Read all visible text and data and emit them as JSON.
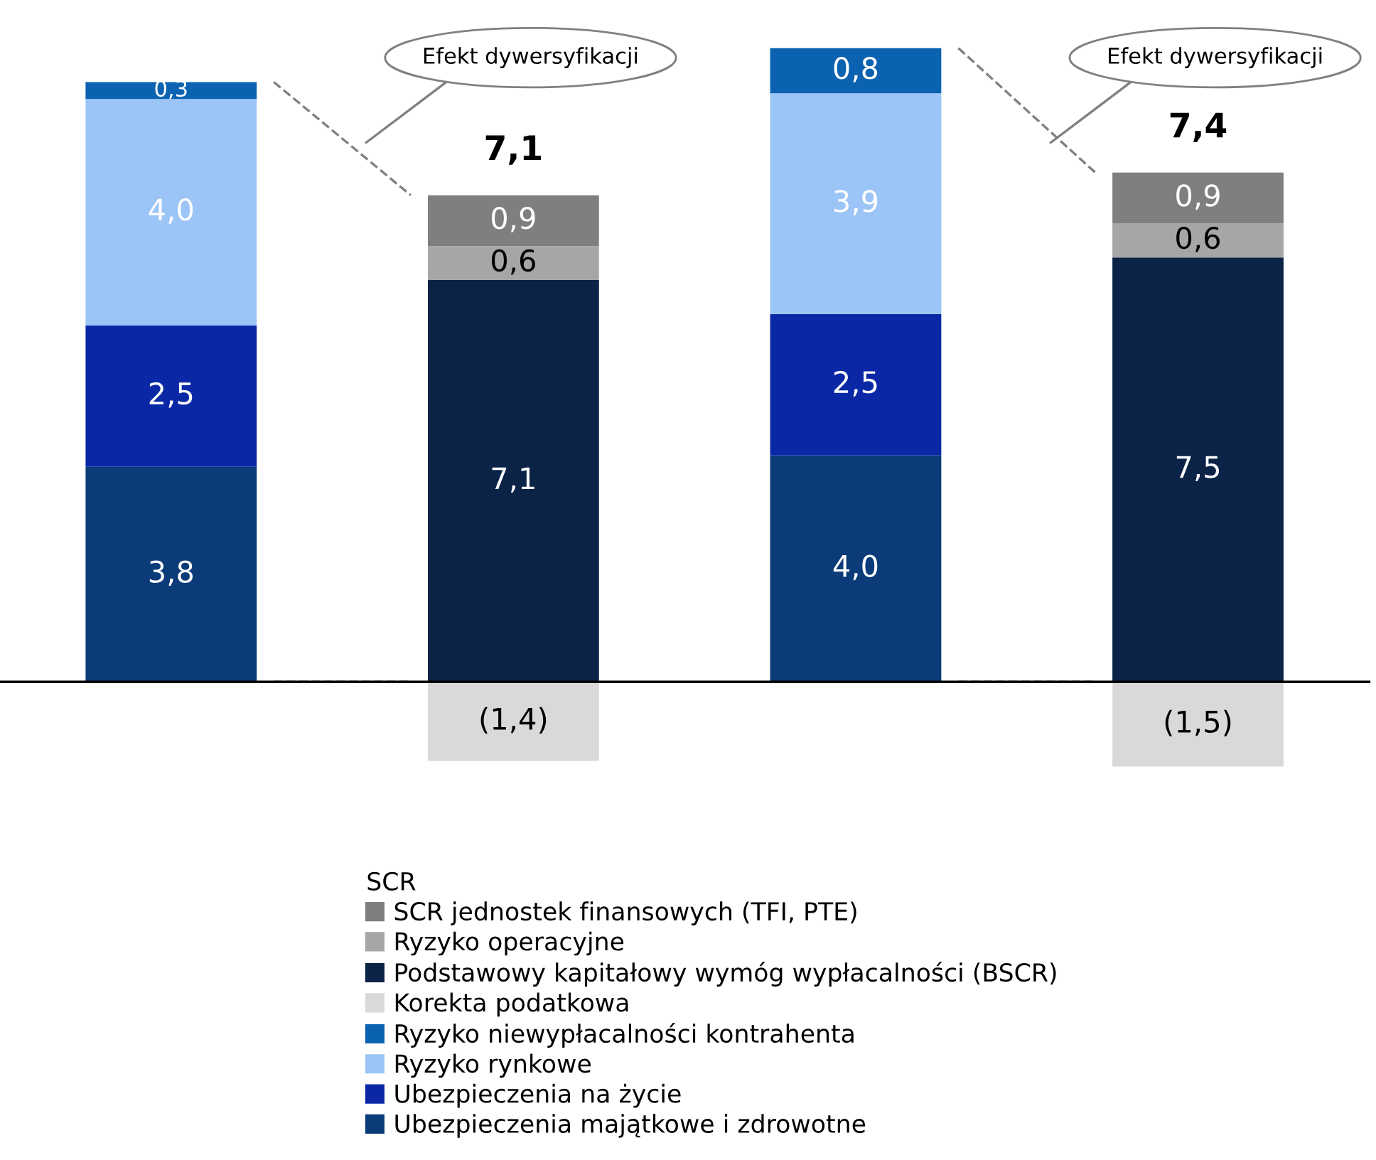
{
  "chart_data": {
    "type": "bar",
    "stacked": true,
    "categories": [
      null,
      null,
      null,
      null
    ],
    "series": [
      {
        "name": "Ubezpieczenia majątkowe i zdrowotne",
        "color": "#0b3b78",
        "values": [
          3.8,
          null,
          4.0,
          null
        ],
        "value_labels": [
          "3,8",
          null,
          "4,0",
          null
        ]
      },
      {
        "name": "Ubezpieczenia na życie",
        "color": "#0a28a6",
        "values": [
          2.5,
          null,
          2.5,
          null
        ],
        "value_labels": [
          "2,5",
          null,
          "2,5",
          null
        ]
      },
      {
        "name": "Ryzyko rynkowe",
        "color": "#9cc5f7",
        "values": [
          4.0,
          null,
          3.9,
          null
        ],
        "value_labels": [
          "4,0",
          null,
          "3,9",
          null
        ]
      },
      {
        "name": "Ryzyko niewypłacalności kontrahenta",
        "color": "#0a62b0",
        "values": [
          0.3,
          null,
          0.8,
          null
        ],
        "value_labels": [
          "0,3",
          null,
          "0,8",
          null
        ]
      },
      {
        "name": "Korekta podatkowa",
        "color": "#d9d9d9",
        "values": [
          null,
          -1.4,
          null,
          -1.5
        ],
        "value_labels": [
          null,
          "(1,4)",
          null,
          "(1,5)"
        ]
      },
      {
        "name": "Podstawowy kapitałowy wymóg wypłacalności (BSCR)",
        "color": "#0a2346",
        "values": [
          null,
          7.1,
          null,
          7.5
        ],
        "value_labels": [
          null,
          "7,1",
          null,
          "7,5"
        ]
      },
      {
        "name": "Ryzyko operacyjne",
        "color": "#a6a6a6",
        "values": [
          null,
          0.6,
          null,
          0.6
        ],
        "value_labels": [
          null,
          "0,6",
          null,
          "0,6"
        ]
      },
      {
        "name": "SCR jednostek finansowych (TFI, PTE)",
        "color": "#7f7f7f",
        "values": [
          null,
          0.9,
          null,
          0.9
        ],
        "value_labels": [
          null,
          "0,9",
          null,
          "0,9"
        ]
      }
    ],
    "totals": [
      null,
      "7,1",
      null,
      "7,4"
    ],
    "annotations": [
      "Efekt dywersyfikacji",
      "Efekt dywersyfikacji"
    ],
    "legend_title": "SCR",
    "legend": "bottom"
  }
}
